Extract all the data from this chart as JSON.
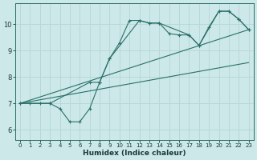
{
  "xlabel": "Humidex (Indice chaleur)",
  "xlim": [
    -0.5,
    23.5
  ],
  "ylim": [
    5.6,
    10.8
  ],
  "xticks": [
    0,
    1,
    2,
    3,
    4,
    5,
    6,
    7,
    8,
    9,
    10,
    11,
    12,
    13,
    14,
    15,
    16,
    17,
    18,
    19,
    20,
    21,
    22,
    23
  ],
  "yticks": [
    6,
    7,
    8,
    9,
    10
  ],
  "bg_color": "#cce8e8",
  "line_color": "#2a7068",
  "grid_color": "#b8d8d8",
  "line1_x": [
    0,
    1,
    2,
    3,
    4,
    5,
    6,
    7,
    8,
    9,
    10,
    11,
    12,
    13,
    14,
    15,
    16,
    17,
    18,
    19,
    20,
    21,
    22,
    23
  ],
  "line1_y": [
    7.0,
    7.0,
    7.0,
    7.0,
    6.8,
    6.3,
    6.3,
    6.8,
    7.8,
    8.7,
    9.3,
    10.15,
    10.15,
    10.05,
    10.05,
    9.65,
    9.6,
    9.6,
    9.2,
    9.9,
    10.5,
    10.5,
    10.2,
    9.8
  ],
  "line2_x": [
    0,
    3,
    7,
    8,
    9,
    12,
    13,
    14,
    17,
    18,
    20,
    21,
    22,
    23
  ],
  "line2_y": [
    7.0,
    7.0,
    7.8,
    7.8,
    8.7,
    10.15,
    10.05,
    10.05,
    9.6,
    9.2,
    10.5,
    10.5,
    10.2,
    9.8
  ],
  "line3_x": [
    0,
    23
  ],
  "line3_y": [
    7.0,
    9.8
  ],
  "line4_x": [
    0,
    23
  ],
  "line4_y": [
    7.0,
    8.55
  ]
}
